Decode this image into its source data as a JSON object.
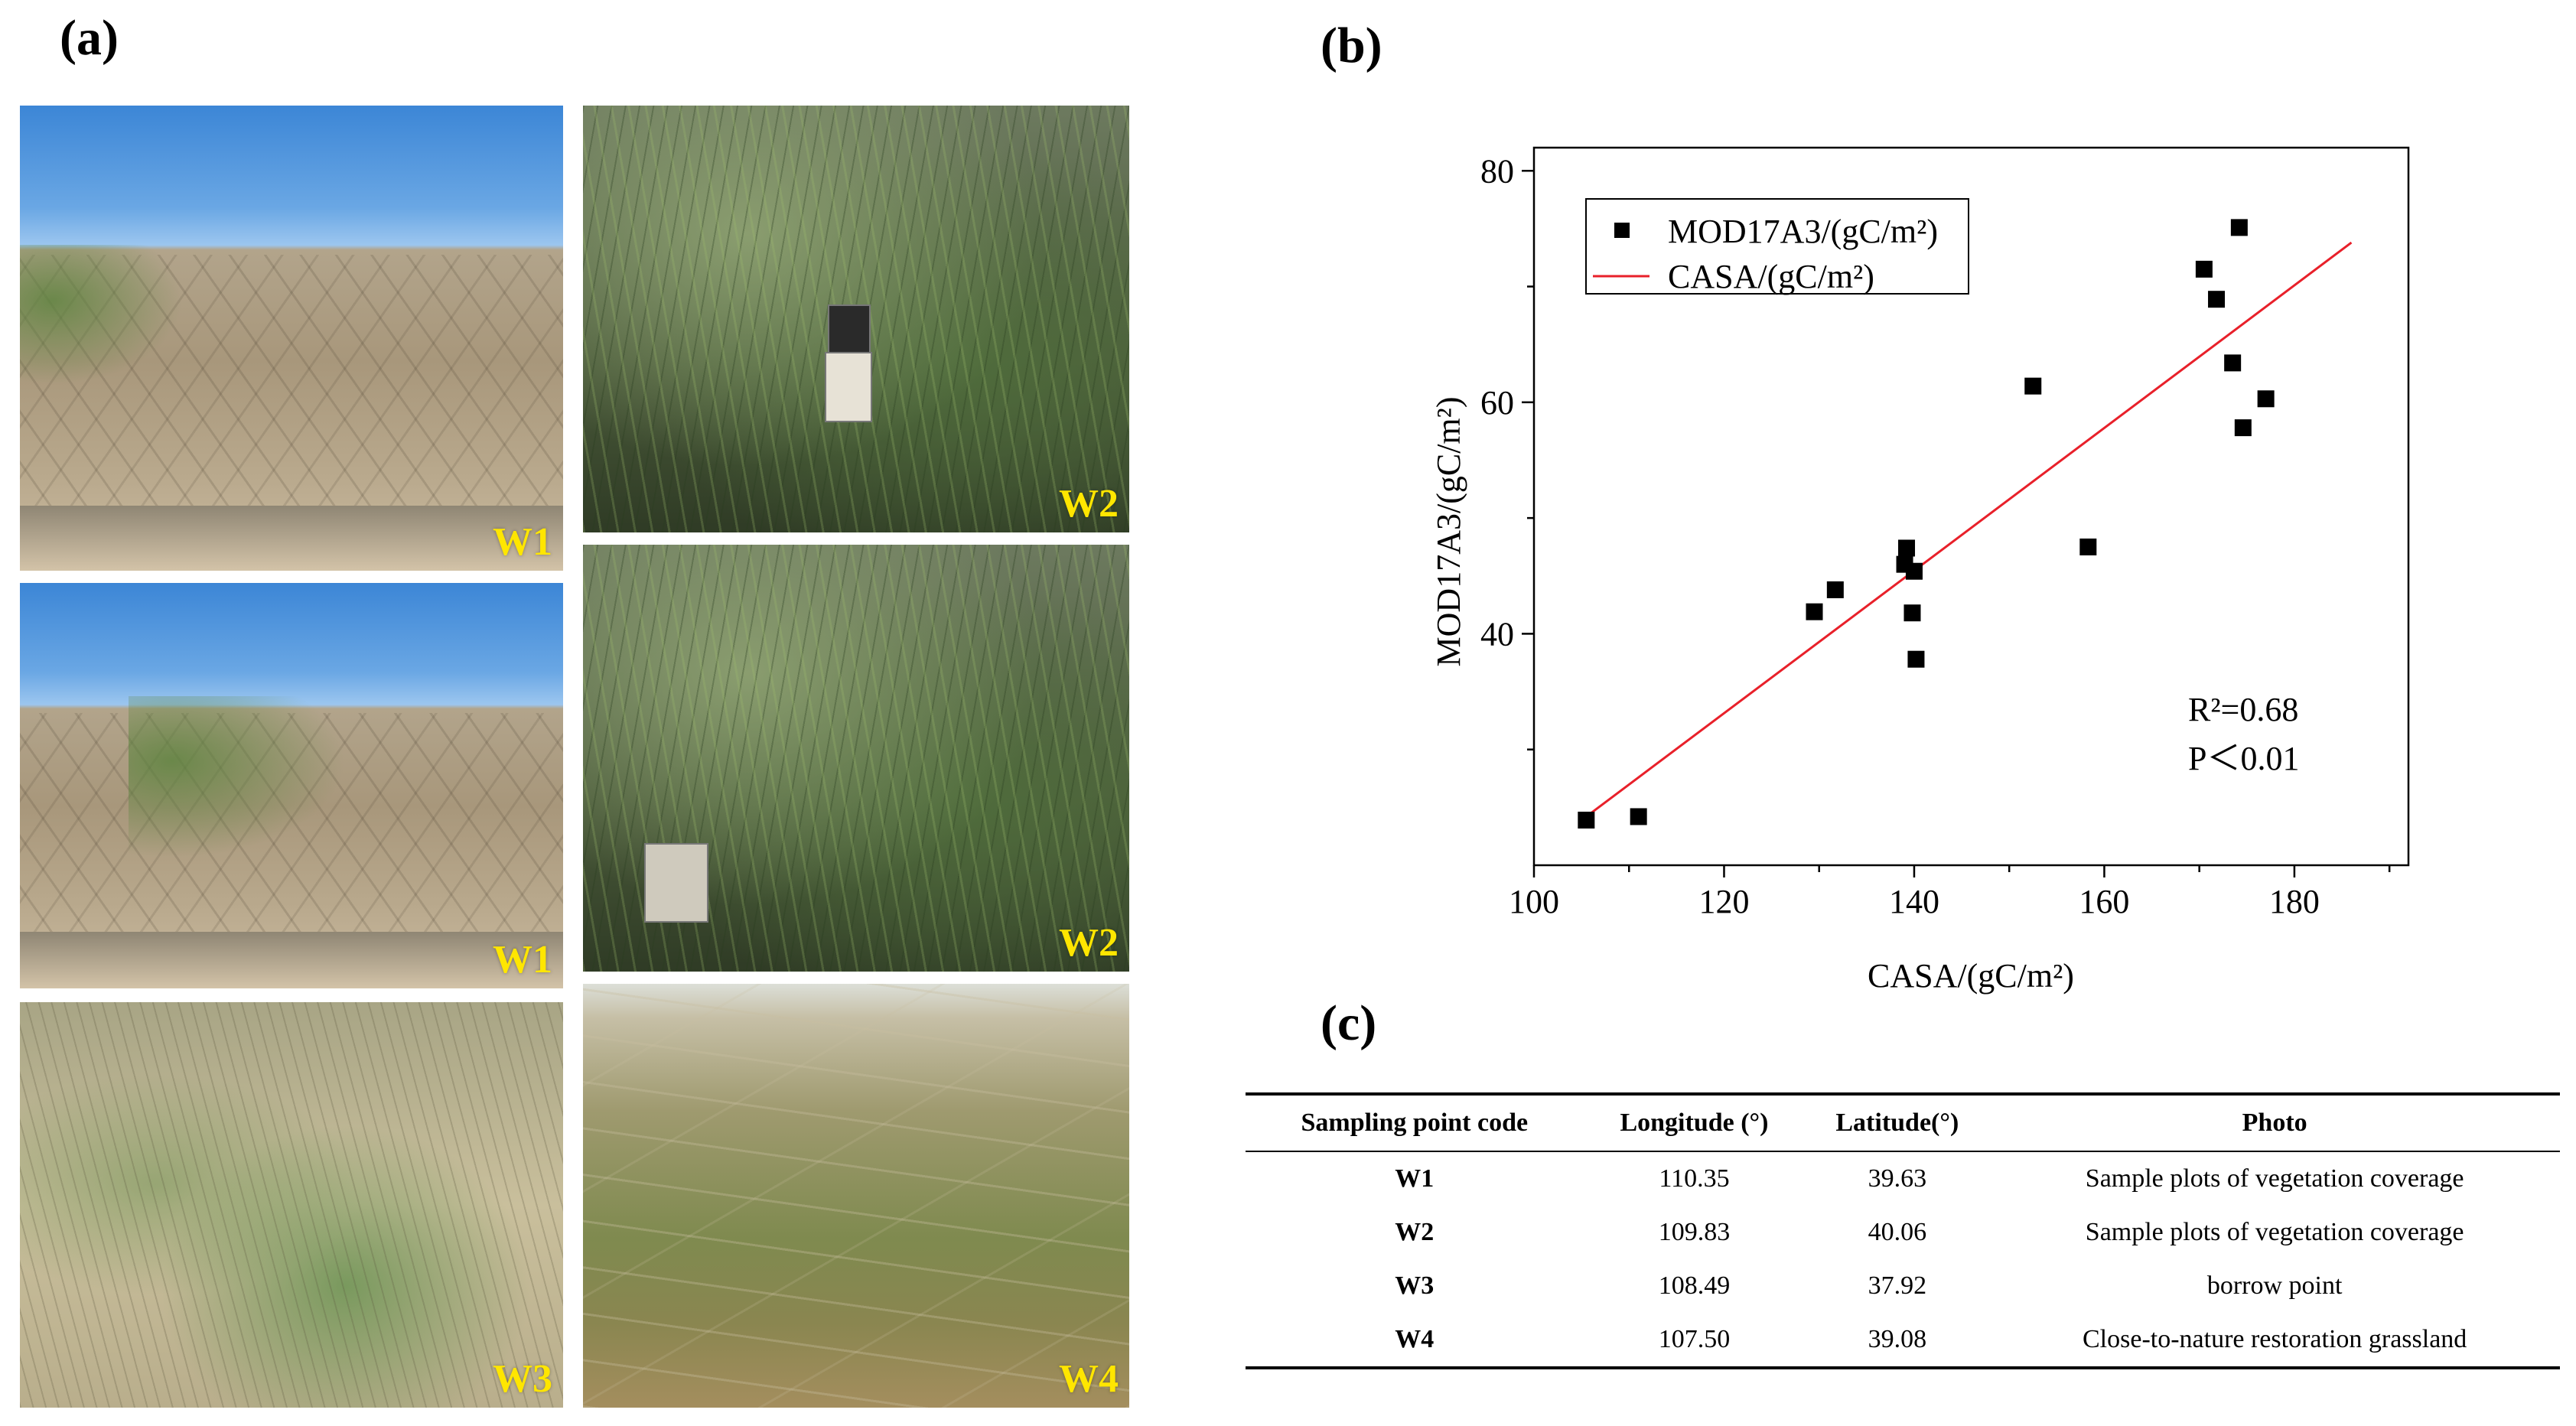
{
  "panels": {
    "a": "(a)",
    "b": "(b)",
    "c": "(c)"
  },
  "photos": [
    {
      "tag": "W1"
    },
    {
      "tag": "W2"
    },
    {
      "tag": "W1"
    },
    {
      "tag": "W2"
    },
    {
      "tag": "W3"
    },
    {
      "tag": "W4"
    }
  ],
  "chart_data": {
    "type": "scatter",
    "xlabel": "CASA/(gC/m²)",
    "ylabel": "MOD17A3/(gC/m²)",
    "xlim": [
      100,
      192
    ],
    "ylim": [
      20,
      82
    ],
    "xticks": [
      100,
      120,
      140,
      160,
      180
    ],
    "yticks": [
      40,
      60,
      80
    ],
    "legend_position": "top-left",
    "series": [
      {
        "name": "MOD17A3/(gC/m²)",
        "marker": "square",
        "color": "#000000",
        "points": [
          [
            105.5,
            23.9
          ],
          [
            111,
            24.2
          ],
          [
            129.5,
            41.9
          ],
          [
            131.7,
            43.8
          ],
          [
            139,
            46
          ],
          [
            139.2,
            47.4
          ],
          [
            139.8,
            41.8
          ],
          [
            140,
            45.4
          ],
          [
            140.2,
            37.8
          ],
          [
            152.5,
            61.4
          ],
          [
            158.3,
            47.5
          ],
          [
            170.5,
            71.5
          ],
          [
            171.8,
            68.9
          ],
          [
            173.5,
            63.4
          ],
          [
            174.2,
            75.1
          ],
          [
            174.6,
            57.8
          ],
          [
            177,
            60.3
          ]
        ]
      },
      {
        "name": "CASA/(gC/m²)",
        "type": "line",
        "color": "#e8202a",
        "points": [
          [
            105.5,
            24.2
          ],
          [
            186,
            73.8
          ]
        ]
      }
    ],
    "annotations": [
      "R²=0.68",
      "P＜0.01"
    ]
  },
  "table": {
    "headers": [
      "Sampling point code",
      "Longitude (°)",
      "Latitude(°)",
      "Photo"
    ],
    "rows": [
      [
        "W1",
        "110.35",
        "39.63",
        "Sample plots of vegetation coverage"
      ],
      [
        "W2",
        "109.83",
        "40.06",
        "Sample plots of vegetation coverage"
      ],
      [
        "W3",
        "108.49",
        "37.92",
        "borrow point"
      ],
      [
        "W4",
        "107.50",
        "39.08",
        "Close-to-nature restoration grassland"
      ]
    ]
  }
}
